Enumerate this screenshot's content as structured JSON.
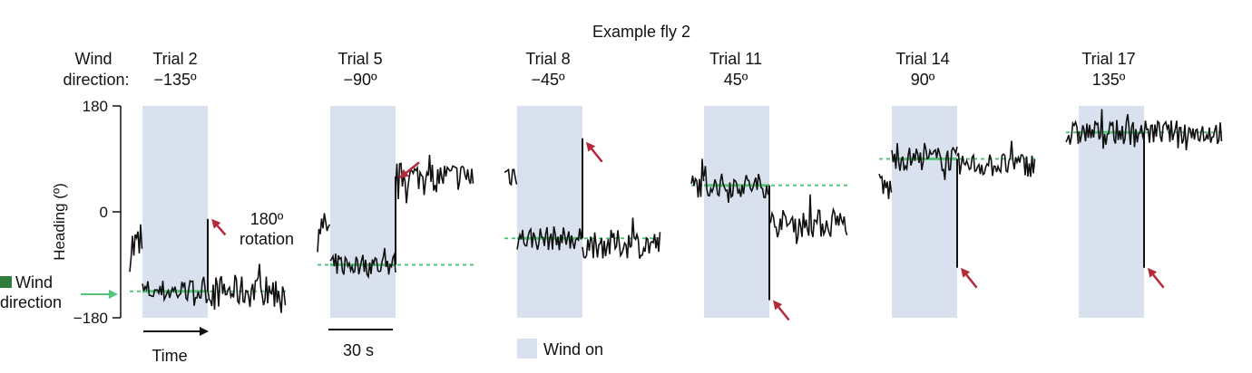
{
  "chart_data": {
    "type": "line",
    "title": "Example fly 2",
    "ylabel": "Heading (º)",
    "ylim": [
      -180,
      180
    ],
    "yticks": [
      "180",
      "0",
      "−180"
    ],
    "wind_direction_label_line1": "Wind",
    "wind_direction_label_line2": "direction",
    "wind_direction_row_label_line1": "Wind",
    "wind_direction_row_label_line2": "direction:",
    "time_label": "Time",
    "scale_bar_label": "30 s",
    "legend_wind_on": "Wind on",
    "rotation_label_line1": "180º",
    "rotation_label_line2": "rotation",
    "colors": {
      "wind_on_shade": "#d9e1ee",
      "wind_direction_line": "#55c57a",
      "arrow": "#b52a3a",
      "trace": "#111111",
      "legend_square": "#2e7d3c"
    },
    "trials": [
      {
        "trial": "Trial 2",
        "direction": "−135º",
        "wind_deg": -135,
        "pre": [
          -60,
          60
        ],
        "post": [
          -135,
          40
        ],
        "arrow_y": -12,
        "arrow_dir": "upleft",
        "post_wrap": true,
        "pre_wrap": true
      },
      {
        "trial": "Trial 5",
        "direction": "−90º",
        "wind_deg": -90,
        "pre": [
          -25,
          35
        ],
        "post": [
          60,
          35
        ],
        "arrow_y": 60,
        "arrow_dir": "downleft",
        "post_wrap": false,
        "pre_wrap": false
      },
      {
        "trial": "Trial 8",
        "direction": "−45º",
        "wind_deg": -45,
        "pre": [
          65,
          35
        ],
        "post": [
          -55,
          35
        ],
        "arrow_y": 125,
        "arrow_dir": "upright",
        "post_wrap": false,
        "pre_wrap": false
      },
      {
        "trial": "Trial 11",
        "direction": "45º",
        "wind_deg": 45,
        "pre": [
          45,
          30
        ],
        "post": [
          -20,
          35
        ],
        "arrow_y": -150,
        "arrow_dir": "downright",
        "post_wrap": false,
        "pre_wrap": false
      },
      {
        "trial": "Trial 14",
        "direction": "90º",
        "wind_deg": 90,
        "pre": [
          40,
          40
        ],
        "post": [
          80,
          30
        ],
        "arrow_y": -95,
        "arrow_dir": "downright",
        "post_wrap": true,
        "pre_wrap": false
      },
      {
        "trial": "Trial 17",
        "direction": "135º",
        "wind_deg": 135,
        "pre": [
          130,
          35
        ],
        "post": [
          135,
          30
        ],
        "arrow_y": -95,
        "arrow_dir": "downright",
        "post_wrap": true,
        "pre_wrap": true
      }
    ]
  }
}
